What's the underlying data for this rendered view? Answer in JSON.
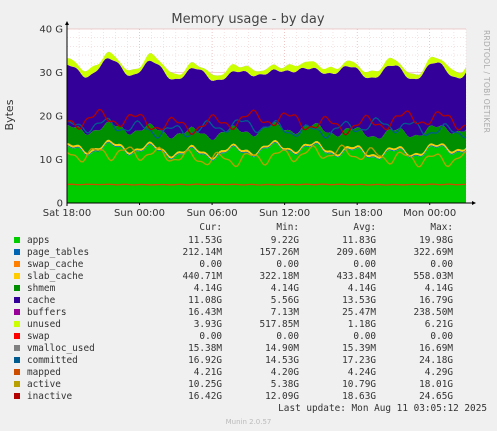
{
  "chart_data": {
    "type": "area",
    "title": "Memory usage - by day",
    "ylabel": "Bytes",
    "side_label": "RRDTOOL / TOBI OETIKER",
    "ylim": [
      0,
      40
    ],
    "y_unit": "G",
    "y_ticks": [
      {
        "value": 0,
        "label": "0"
      },
      {
        "value": 10,
        "label": "10 G"
      },
      {
        "value": 20,
        "label": "20 G"
      },
      {
        "value": 30,
        "label": "30 G"
      },
      {
        "value": 40,
        "label": "40 G"
      }
    ],
    "x_range_hours": [
      0,
      33
    ],
    "x_ticks": [
      {
        "hour": 0,
        "label": "Sat 18:00"
      },
      {
        "hour": 6,
        "label": "Sun 00:00"
      },
      {
        "hour": 12,
        "label": "Sun 06:00"
      },
      {
        "hour": 18,
        "label": "Sun 12:00"
      },
      {
        "hour": 24,
        "label": "Sun 18:00"
      },
      {
        "hour": 30,
        "label": "Mon 00:00"
      }
    ],
    "grid": true,
    "legend_header": {
      "cur": "Cur:",
      "min": "Min:",
      "avg": "Avg:",
      "max": "Max:"
    },
    "series": [
      {
        "name": "apps",
        "color": "#00cc00",
        "cur": "11.53G",
        "min": "9.22G",
        "avg": "11.83G",
        "max": "19.98G",
        "avg_g": 11.83
      },
      {
        "name": "page_tables",
        "color": "#0066b3",
        "cur": "212.14M",
        "min": "157.26M",
        "avg": "209.60M",
        "max": "322.69M",
        "avg_g": 0.21
      },
      {
        "name": "swap_cache",
        "color": "#ff8000",
        "cur": "0.00",
        "min": "0.00",
        "avg": "0.00",
        "max": "0.00",
        "avg_g": 0
      },
      {
        "name": "slab_cache",
        "color": "#ffcc00",
        "cur": "440.71M",
        "min": "322.18M",
        "avg": "433.84M",
        "max": "558.03M",
        "avg_g": 0.43
      },
      {
        "name": "shmem",
        "color": "#008f00",
        "cur": "4.14G",
        "min": "4.14G",
        "avg": "4.14G",
        "max": "4.14G",
        "avg_g": 4.14
      },
      {
        "name": "cache",
        "color": "#330099",
        "cur": "11.08G",
        "min": "5.56G",
        "avg": "13.53G",
        "max": "16.79G",
        "avg_g": 13.53
      },
      {
        "name": "buffers",
        "color": "#990099",
        "cur": "16.43M",
        "min": "7.13M",
        "avg": "25.47M",
        "max": "238.50M",
        "avg_g": 0.03
      },
      {
        "name": "unused",
        "color": "#ccff00",
        "cur": "3.93G",
        "min": "517.85M",
        "avg": "1.18G",
        "max": "6.21G",
        "avg_g": 1.18
      },
      {
        "name": "swap",
        "color": "#ff0000",
        "cur": "0.00",
        "min": "0.00",
        "avg": "0.00",
        "max": "0.00",
        "avg_g": 0
      },
      {
        "name": "vmalloc_used",
        "color": "#808080",
        "cur": "15.38M",
        "min": "14.90M",
        "avg": "15.39M",
        "max": "16.69M",
        "avg_g": 0.015
      },
      {
        "name": "committed",
        "color": "#005c8f",
        "cur": "16.92G",
        "min": "14.53G",
        "avg": "17.23G",
        "max": "24.18G",
        "avg_g": 17.23
      },
      {
        "name": "mapped",
        "color": "#cc4d00",
        "cur": "4.21G",
        "min": "4.20G",
        "avg": "4.24G",
        "max": "4.29G",
        "avg_g": 4.24
      },
      {
        "name": "active",
        "color": "#b8a000",
        "cur": "10.25G",
        "min": "5.38G",
        "avg": "10.79G",
        "max": "18.01G",
        "avg_g": 10.79
      },
      {
        "name": "inactive",
        "color": "#b30000",
        "cur": "16.42G",
        "min": "12.09G",
        "avg": "18.63G",
        "max": "24.65G",
        "avg_g": 18.63
      }
    ],
    "stacked": [
      "apps",
      "page_tables",
      "swap_cache",
      "slab_cache",
      "shmem",
      "cache",
      "buffers",
      "unused",
      "swap",
      "vmalloc_used"
    ],
    "lines": [
      "committed",
      "mapped",
      "active",
      "inactive"
    ]
  },
  "footer": {
    "last_update": "Last update: Mon Aug 11 03:05:12 2025",
    "generator": "Munin 2.0.57"
  }
}
